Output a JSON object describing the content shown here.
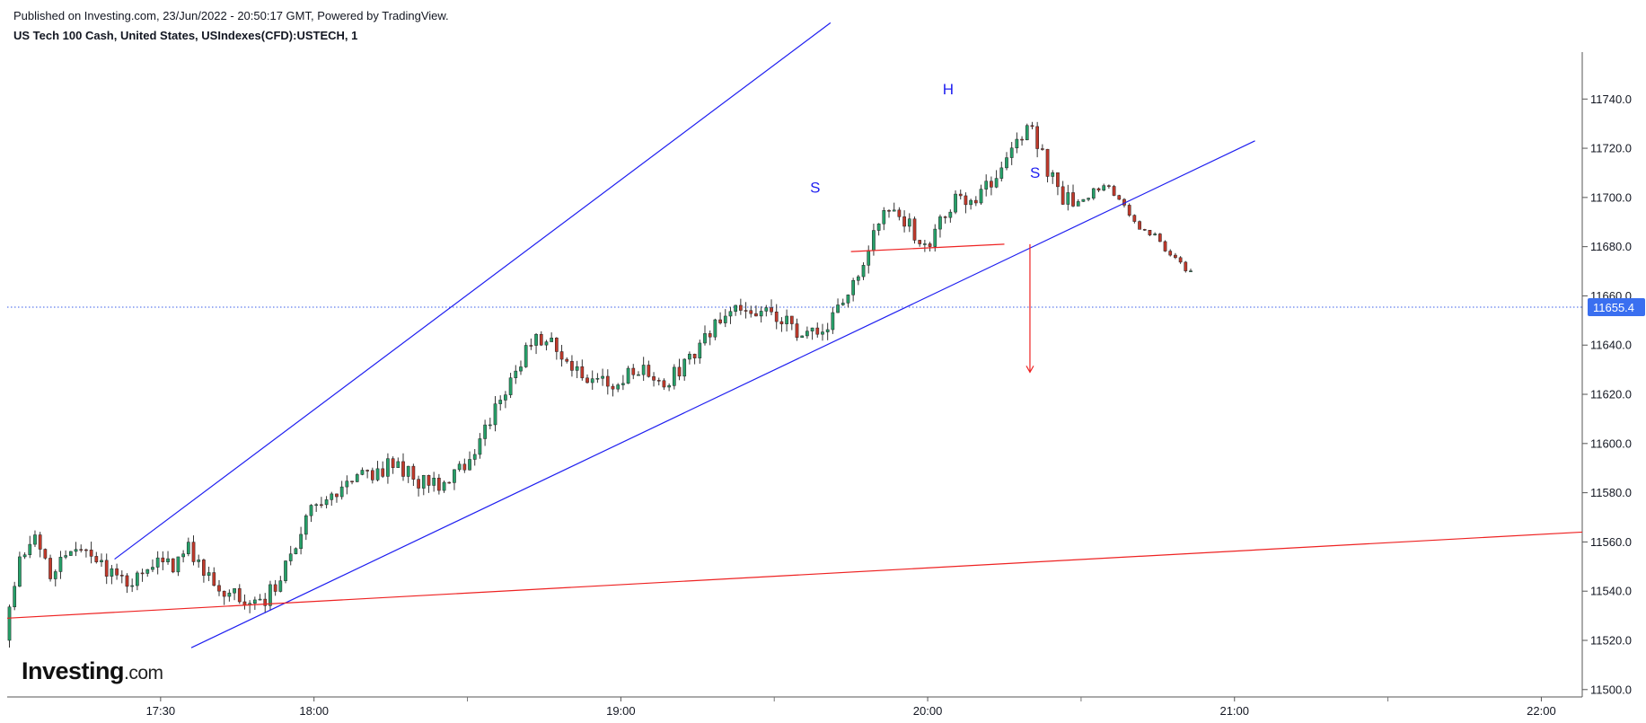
{
  "header": {
    "published": "Published on Investing.com, 23/Jun/2022 - 20:50:17 GMT, Powered by TradingView.",
    "symbol": "US Tech 100 Cash, United States, USIndexes(CFD):USTECH, 1"
  },
  "logo": {
    "main": "Investing",
    "suffix": ".com"
  },
  "colors": {
    "up": "#26a069",
    "down": "#c0392b",
    "channel": "#1f1ff0",
    "support": "#ee2222",
    "price_line": "#3a5ee8",
    "price_badge": "#3a6ff0"
  },
  "chart_data": {
    "type": "candlestick",
    "y_ticks": [
      "11500.0",
      "11520.0",
      "11540.0",
      "11560.0",
      "11580.0",
      "11600.0",
      "11620.0",
      "11640.0",
      "11660.0",
      "11680.0",
      "11700.0",
      "11720.0",
      "11740.0"
    ],
    "y_tick_values": [
      11500,
      11520,
      11540,
      11560,
      11580,
      11600,
      11620,
      11640,
      11660,
      11680,
      11700,
      11720,
      11740
    ],
    "x_ticks": [
      {
        "label": "17:30",
        "t": "17:30"
      },
      {
        "label": "18:00",
        "t": "18:00"
      },
      {
        "label": "19:00",
        "t": "19:00"
      },
      {
        "label": "20:00",
        "t": "20:00"
      },
      {
        "label": "21:00",
        "t": "21:00"
      },
      {
        "label": "22:00",
        "t": "22:00"
      }
    ],
    "ylim": [
      11497,
      11762
    ],
    "xlim": [
      "17:00",
      "22:08"
    ],
    "last_price": {
      "value": 11655.4,
      "label": "11655.4"
    },
    "ohlc": [],
    "anchors": [
      [
        "17:00",
        11520
      ],
      [
        "17:03",
        11553
      ],
      [
        "17:06",
        11560
      ],
      [
        "17:09",
        11547
      ],
      [
        "17:12",
        11553
      ],
      [
        "17:15",
        11555
      ],
      [
        "17:18",
        11551
      ],
      [
        "17:21",
        11547
      ],
      [
        "17:24",
        11541
      ],
      [
        "17:27",
        11546
      ],
      [
        "17:30",
        11553
      ],
      [
        "17:33",
        11551
      ],
      [
        "17:36",
        11557
      ],
      [
        "17:39",
        11547
      ],
      [
        "17:42",
        11542
      ],
      [
        "17:45",
        11538
      ],
      [
        "17:48",
        11532
      ],
      [
        "17:51",
        11536
      ],
      [
        "17:54",
        11546
      ],
      [
        "17:57",
        11559
      ],
      [
        "18:00",
        11572
      ],
      [
        "18:03",
        11576
      ],
      [
        "18:06",
        11581
      ],
      [
        "18:09",
        11586
      ],
      [
        "18:12",
        11588
      ],
      [
        "18:15",
        11591
      ],
      [
        "18:18",
        11590
      ],
      [
        "18:21",
        11585
      ],
      [
        "18:24",
        11583
      ],
      [
        "18:27",
        11586
      ],
      [
        "18:30",
        11590
      ],
      [
        "18:33",
        11602
      ],
      [
        "18:36",
        11615
      ],
      [
        "18:39",
        11627
      ],
      [
        "18:42",
        11637
      ],
      [
        "18:45",
        11643
      ],
      [
        "18:48",
        11639
      ],
      [
        "18:51",
        11632
      ],
      [
        "18:54",
        11628
      ],
      [
        "18:57",
        11624
      ],
      [
        "19:00",
        11626
      ],
      [
        "19:03",
        11630
      ],
      [
        "19:06",
        11628
      ],
      [
        "19:09",
        11625
      ],
      [
        "19:12",
        11630
      ],
      [
        "19:15",
        11638
      ],
      [
        "19:18",
        11645
      ],
      [
        "19:21",
        11654
      ],
      [
        "19:24",
        11655
      ],
      [
        "19:27",
        11651
      ],
      [
        "19:30",
        11654
      ],
      [
        "19:33",
        11649
      ],
      [
        "19:36",
        11641
      ],
      [
        "19:39",
        11646
      ],
      [
        "19:42",
        11651
      ],
      [
        "19:45",
        11660
      ],
      [
        "19:48",
        11675
      ],
      [
        "19:51",
        11690
      ],
      [
        "19:54",
        11695
      ],
      [
        "19:57",
        11689
      ],
      [
        "20:00",
        11680
      ],
      [
        "20:03",
        11690
      ],
      [
        "20:06",
        11700
      ],
      [
        "20:09",
        11698
      ],
      [
        "20:12",
        11705
      ],
      [
        "20:15",
        11712
      ],
      [
        "20:18",
        11724
      ],
      [
        "20:21",
        11729
      ],
      [
        "20:24",
        11711
      ],
      [
        "20:27",
        11700
      ],
      [
        "20:30",
        11696
      ],
      [
        "20:33",
        11703
      ],
      [
        "20:36",
        11705
      ],
      [
        "20:39",
        11696
      ],
      [
        "20:42",
        11688
      ],
      [
        "20:45",
        11684
      ],
      [
        "20:48",
        11677
      ],
      [
        "20:51",
        11671
      ]
    ]
  },
  "annotations": {
    "channel_upper": [
      [
        "17:21",
        11553
      ],
      [
        "19:41",
        11771
      ]
    ],
    "channel_lower": [
      [
        "17:36",
        11517
      ],
      [
        "21:04",
        11723
      ]
    ],
    "support": [
      [
        "17:00",
        11529
      ],
      [
        "22:08",
        11564
      ]
    ],
    "neckline": [
      [
        "19:45",
        11678
      ],
      [
        "20:15",
        11681
      ]
    ],
    "target_arrow": {
      "from": [
        "20:20",
        11681
      ],
      "to": [
        "20:20",
        11629
      ]
    },
    "labels": [
      {
        "text": "S",
        "at": [
          "19:38",
          11702
        ]
      },
      {
        "text": "H",
        "at": [
          "20:04",
          11742
        ]
      },
      {
        "text": "S",
        "at": [
          "20:21",
          11708
        ]
      }
    ]
  }
}
